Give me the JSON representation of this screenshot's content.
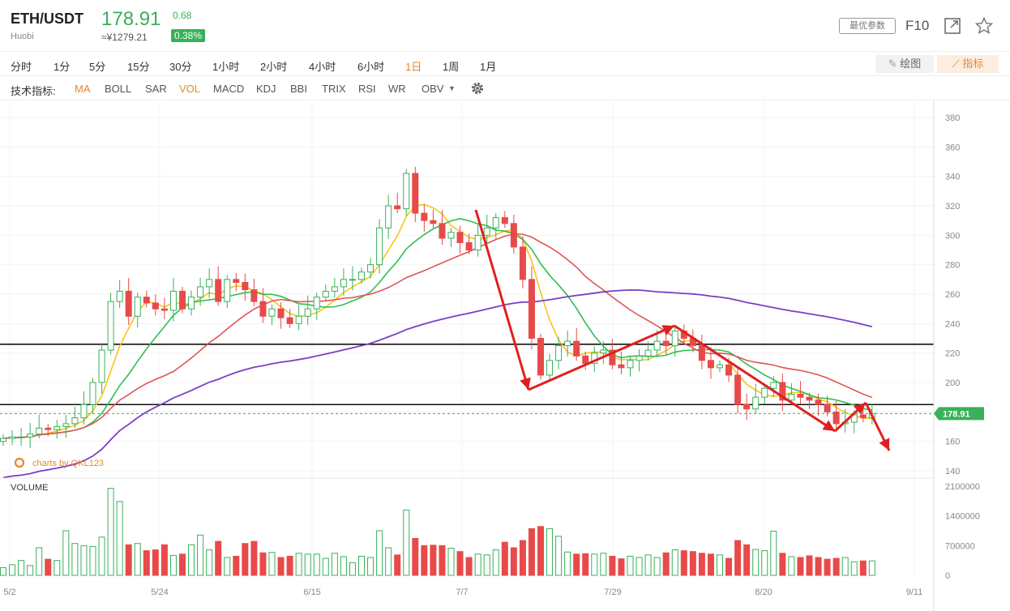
{
  "header": {
    "pair": "ETH/USDT",
    "exchange": "Huobi",
    "price": "178.91",
    "change": "0.68",
    "cny_price": "≈¥1279.21",
    "change_pct": "0.38%",
    "param_button": "最优参数",
    "f10_label": "F10"
  },
  "timeframes": {
    "items": [
      "分时",
      "1分",
      "5分",
      "15分",
      "30分",
      "1小时",
      "2小时",
      "4小时",
      "6小时",
      "1日",
      "1周",
      "1月"
    ],
    "active": "1日",
    "draw_label": "绘图",
    "indicator_label": "指标"
  },
  "indicators": {
    "label": "技术指标:",
    "items": [
      "MA",
      "BOLL",
      "SAR",
      "VOL",
      "MACD",
      "KDJ",
      "BBI",
      "TRIX",
      "RSI",
      "WR",
      "OBV"
    ],
    "active": [
      "MA",
      "VOL"
    ]
  },
  "chart_data": {
    "type": "candlestick",
    "price_axis": {
      "ticks": [
        "380",
        "360",
        "340",
        "320",
        "300",
        "280",
        "260",
        "240",
        "220",
        "200",
        "180",
        "160",
        "140"
      ],
      "range": [
        140,
        380
      ]
    },
    "volume_axis": {
      "ticks": [
        "2100000",
        "1400000",
        "700000",
        "0"
      ],
      "range": [
        0,
        2100000
      ]
    },
    "x_ticks": [
      "5/2",
      "5/24",
      "6/15",
      "7/7",
      "7/29",
      "8/20",
      "9/11"
    ],
    "last_price_label": "178.91",
    "volume_title": "VOLUME",
    "watermark": "charts by QKL123",
    "horizontal_levels": [
      226,
      185
    ],
    "closes": [
      162,
      163,
      163,
      165,
      169,
      168,
      170,
      172,
      176,
      185,
      200,
      222,
      255,
      262,
      245,
      258,
      254,
      250,
      249,
      262,
      250,
      258,
      265,
      270,
      255,
      270,
      268,
      263,
      255,
      245,
      250,
      244,
      240,
      245,
      250,
      258,
      262,
      265,
      270,
      270,
      275,
      280,
      305,
      320,
      318,
      342,
      315,
      310,
      308,
      298,
      302,
      295,
      290,
      300,
      305,
      312,
      308,
      292,
      270,
      230,
      205,
      215,
      225,
      228,
      218,
      213,
      220,
      222,
      212,
      210,
      215,
      218,
      222,
      228,
      225,
      235,
      230,
      225,
      215,
      210,
      212,
      205,
      185,
      182,
      190,
      196,
      200,
      188,
      192,
      190,
      188,
      185,
      180,
      172,
      173,
      178,
      176,
      179
    ],
    "volumes": [
      180000,
      250000,
      350000,
      230000,
      650000,
      380000,
      350000,
      1050000,
      750000,
      700000,
      680000,
      900000,
      2050000,
      1740000,
      720000,
      750000,
      580000,
      600000,
      720000,
      470000,
      500000,
      720000,
      950000,
      600000,
      800000,
      420000,
      450000,
      750000,
      800000,
      530000,
      540000,
      420000,
      450000,
      520000,
      500000,
      500000,
      400000,
      520000,
      440000,
      300000,
      450000,
      420000,
      1050000,
      650000,
      480000,
      1540000,
      870000,
      700000,
      710000,
      700000,
      640000,
      560000,
      420000,
      500000,
      480000,
      600000,
      780000,
      650000,
      820000,
      1100000,
      1150000,
      1100000,
      920000,
      550000,
      500000,
      510000,
      500000,
      520000,
      450000,
      390000,
      450000,
      420000,
      480000,
      420000,
      530000,
      600000,
      580000,
      560000,
      520000,
      500000,
      480000,
      400000,
      820000,
      720000,
      610000,
      580000,
      1040000,
      520000,
      440000,
      420000,
      460000,
      420000,
      380000,
      400000,
      420000,
      320000,
      340000,
      340000
    ]
  }
}
